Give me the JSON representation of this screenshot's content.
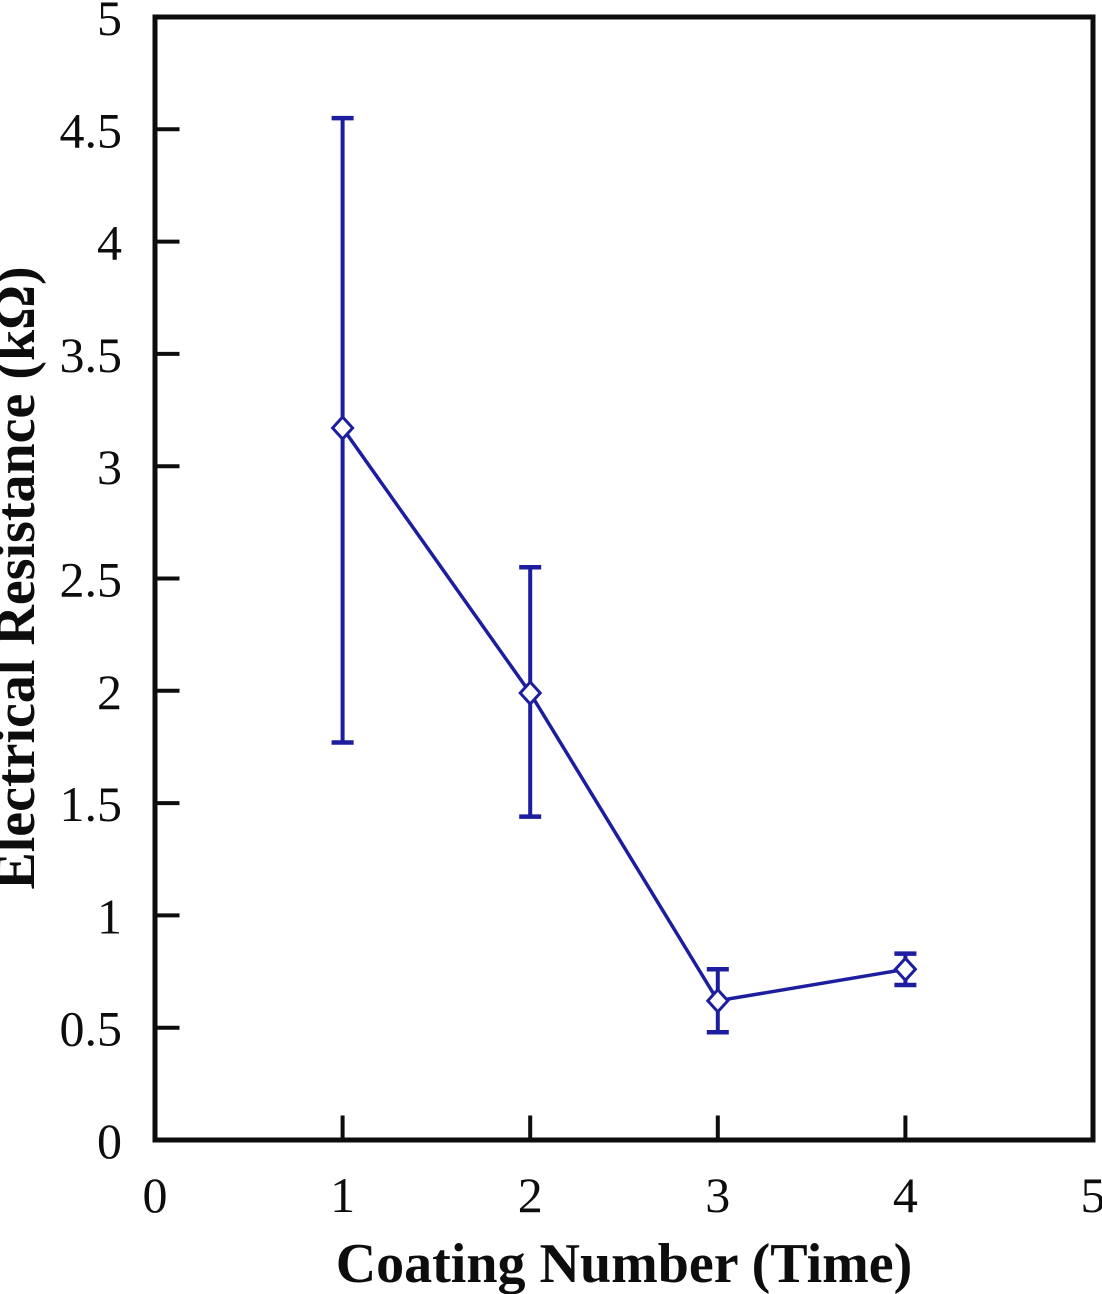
{
  "chart_data": {
    "type": "line",
    "title": "",
    "xlabel": "Coating Number (Time)",
    "ylabel": "Electrical Resistance (kΩ)",
    "xlim": [
      0,
      5
    ],
    "ylim": [
      0,
      5
    ],
    "xticks": [
      0,
      1,
      2,
      3,
      4,
      5
    ],
    "yticks": [
      0,
      0.5,
      1,
      1.5,
      2,
      2.5,
      3,
      3.5,
      4,
      4.5,
      5
    ],
    "grid": false,
    "legend_position": "none",
    "background_color": "#ffffff",
    "axis_color": "#0d0d0d",
    "series": [
      {
        "name": "electrical-resistance",
        "marker": "open-diamond",
        "color": "#1d1da0",
        "x": [
          1,
          2,
          3,
          4
        ],
        "y": [
          3.17,
          1.99,
          0.62,
          0.76
        ],
        "error_low": [
          1.77,
          1.44,
          0.48,
          0.69
        ],
        "error_high": [
          4.55,
          2.55,
          0.76,
          0.83
        ]
      }
    ]
  }
}
